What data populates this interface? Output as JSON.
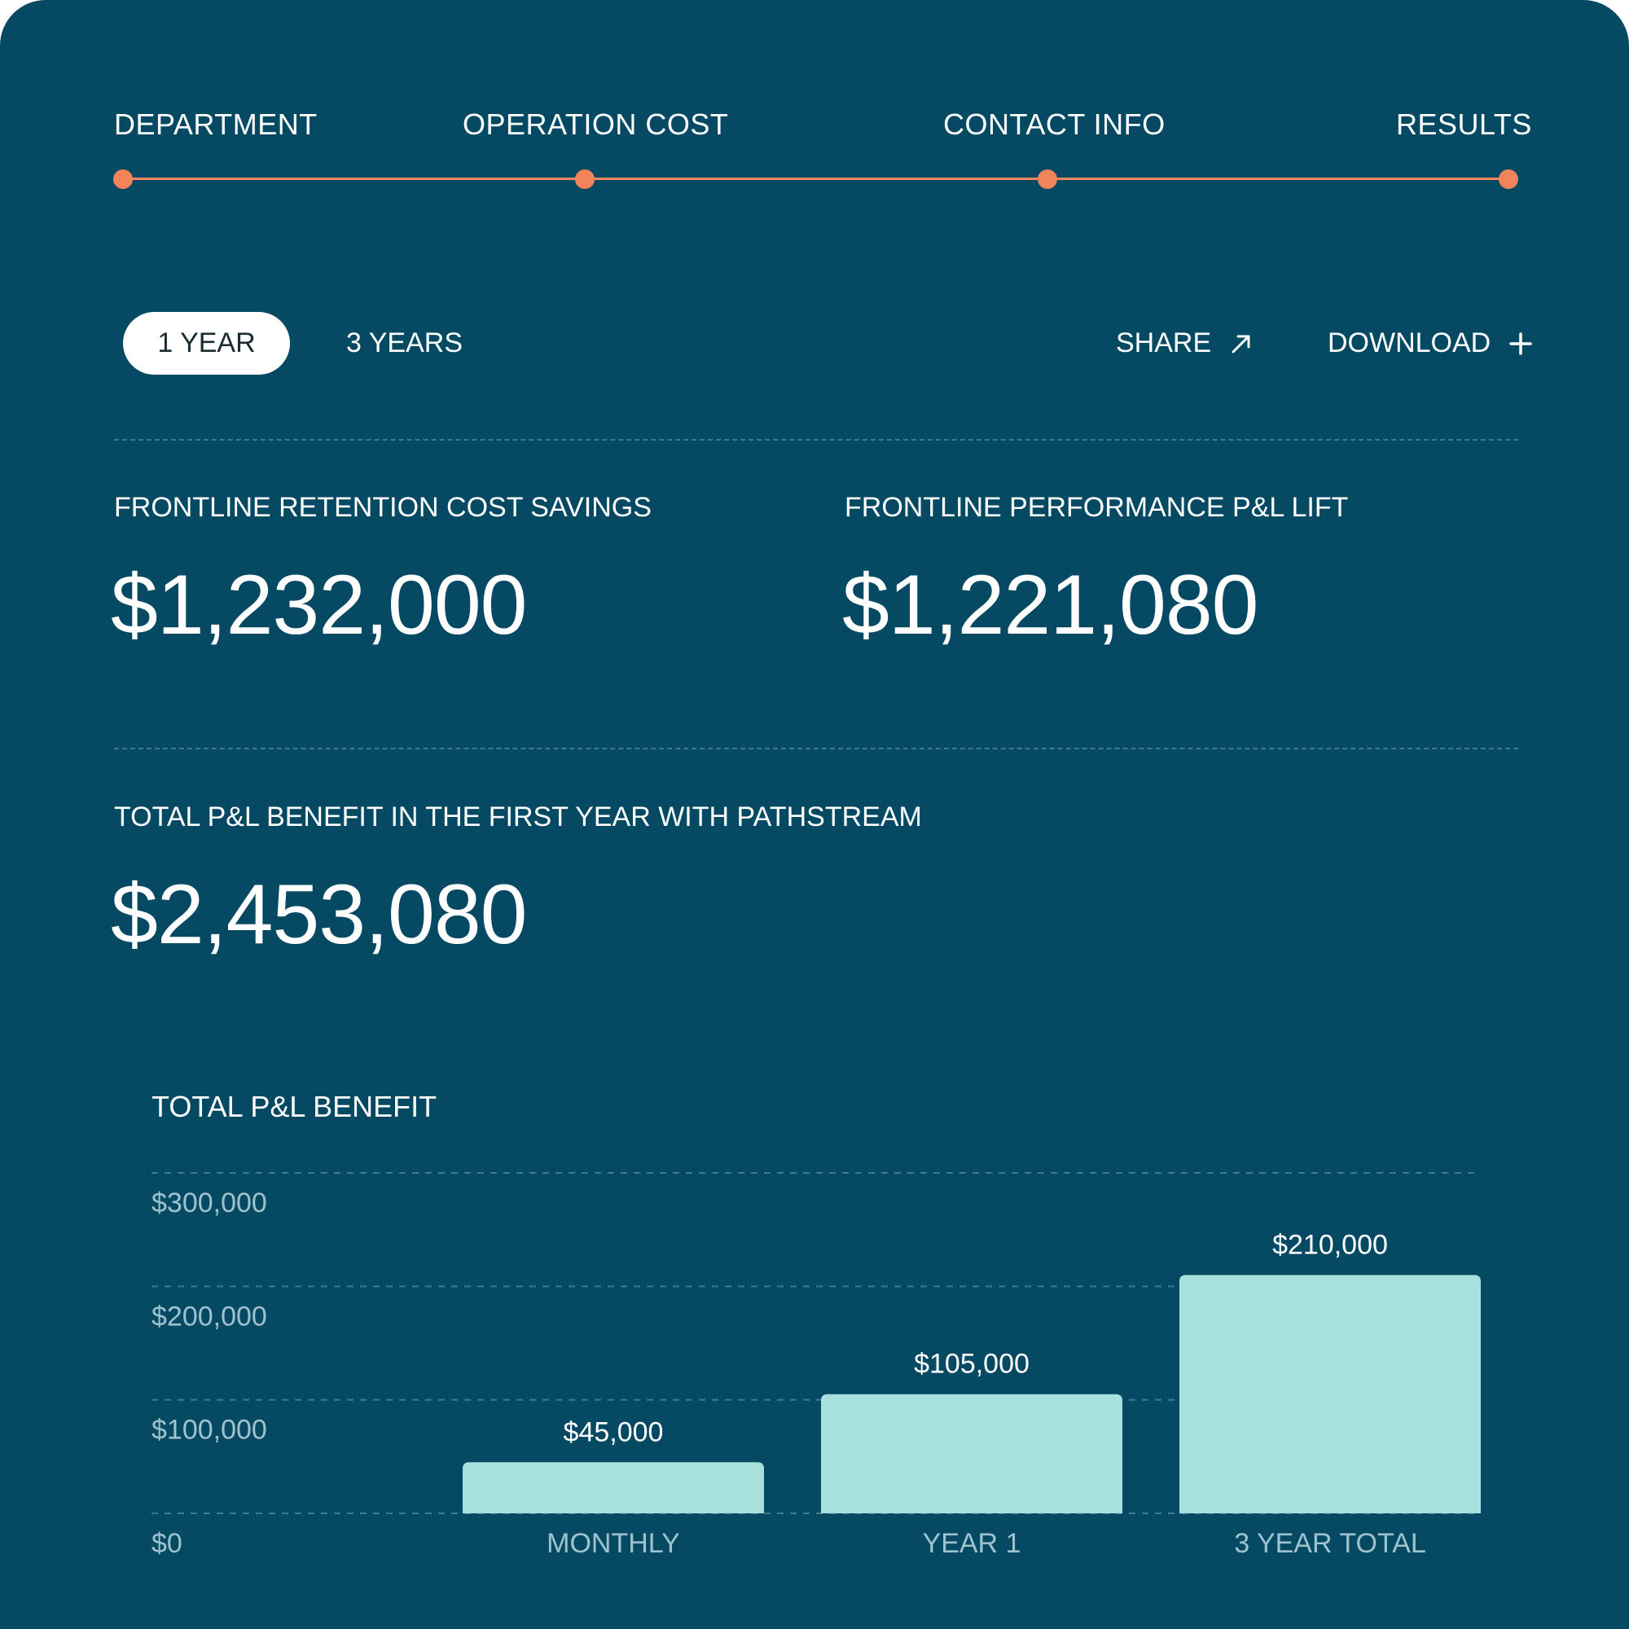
{
  "stepper": {
    "steps": [
      {
        "label": "DEPARTMENT"
      },
      {
        "label": "OPERATION COST"
      },
      {
        "label": "CONTACT INFO"
      },
      {
        "label": "RESULTS"
      }
    ],
    "accent_color": "#f3845a"
  },
  "toolbar": {
    "period_options": [
      "1 YEAR",
      "3 YEARS"
    ],
    "selected_period": "1 YEAR",
    "share_label": "SHARE",
    "share_icon": "arrow-up-right-icon",
    "download_label": "DOWNLOAD",
    "download_icon": "plus-icon"
  },
  "metrics": {
    "retention": {
      "label": "FRONTLINE RETENTION COST SAVINGS",
      "value": "$1,232,000"
    },
    "performance": {
      "label": "FRONTLINE PERFORMANCE  P&L LIFT",
      "value": "$1,221,080"
    },
    "total": {
      "label": "TOTAL P&L BENEFIT IN THE FIRST YEAR WITH PATHSTREAM",
      "value": "$2,453,080"
    }
  },
  "colors": {
    "background": "#054963",
    "bar": "#a8e0dd",
    "accent": "#f3845a"
  },
  "chart_data": {
    "type": "bar",
    "title": "TOTAL P&L BENEFIT",
    "categories": [
      "MONTHLY",
      "YEAR 1",
      "3 YEAR TOTAL"
    ],
    "values": [
      45000,
      105000,
      210000
    ],
    "value_labels": [
      "$45,000",
      "$105,000",
      "$210,000"
    ],
    "ylim": [
      0,
      300000
    ],
    "yticks": [
      0,
      100000,
      200000,
      300000
    ],
    "ytick_labels": [
      "$0",
      "$100,000",
      "$200,000",
      "$300,000"
    ],
    "grid": true
  }
}
